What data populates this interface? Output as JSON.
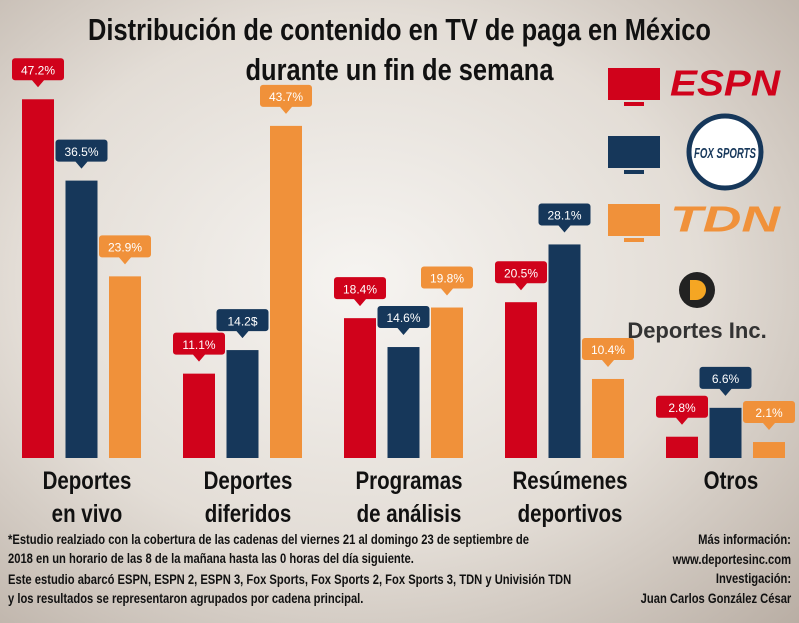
{
  "chart_data": {
    "type": "bar",
    "title": "Distribución de contenido en TV de paga en México\ndurante un fin de semana",
    "categories": [
      "Deportes\nen vivo",
      "Deportes\ndiferidos",
      "Programas\nde análisis",
      "Resúmenes\ndeportivos",
      "Otros"
    ],
    "series": [
      {
        "name": "ESPN",
        "color": "#d0021b",
        "values": [
          47.2,
          11.1,
          18.4,
          20.5,
          2.8
        ],
        "value_labels": [
          "47.2%",
          "11.1%",
          "18.4%",
          "20.5%",
          "2.8%"
        ]
      },
      {
        "name": "FOX SPORTS",
        "color": "#16375a",
        "values": [
          36.5,
          14.2,
          14.6,
          28.1,
          6.6
        ],
        "value_labels": [
          "36.5%",
          "14.2$",
          "14.6%",
          "28.1%",
          "6.6%"
        ]
      },
      {
        "name": "TDN",
        "color": "#f0913a",
        "values": [
          23.9,
          43.7,
          19.8,
          10.4,
          2.1
        ],
        "value_labels": [
          "23.9%",
          "43.7%",
          "19.8%",
          "10.4%",
          "2.1%"
        ]
      }
    ],
    "brand": "Deportes Inc.",
    "notes": [
      "*Estudio realziado con la cobertura de las cadenas del viernes 21 al domingo 23 de septiembre de\n2018 en un horario de las 8 de la mañana hasta las 0 horas del día siguiente.",
      "Este  estudio abarcó ESPN, ESPN 2, ESPN 3, Fox Sports, Fox Sports 2, Fox Sports 3, TDN y Univisión TDN\ny los resultados se representaron agrupados por cadena principal."
    ],
    "credits": [
      "Más información:",
      "www.deportesinc.com",
      "Investigación:",
      "Juan Carlos González César"
    ]
  }
}
